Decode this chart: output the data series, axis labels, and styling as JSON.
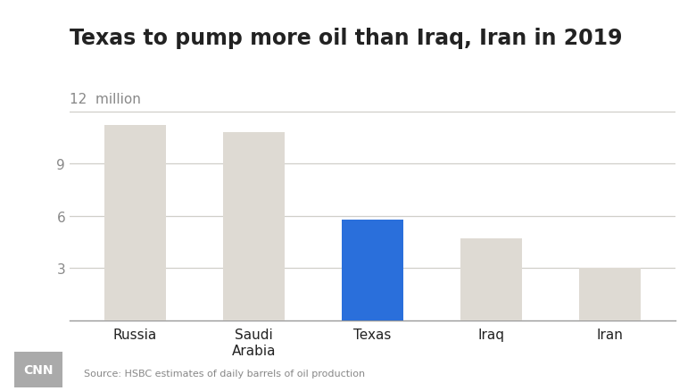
{
  "title": "Texas to pump more oil than Iraq, Iran in 2019",
  "categories": [
    "Russia",
    "Saudi\nArabia",
    "Texas",
    "Iraq",
    "Iran"
  ],
  "values": [
    11.2,
    10.8,
    5.8,
    4.7,
    3.0
  ],
  "bar_colors": [
    "#dedad3",
    "#dedad3",
    "#2a6fdb",
    "#dedad3",
    "#dedad3"
  ],
  "background_color": "#ffffff",
  "ylabel_text": "12  million",
  "ytick_labels": [
    "3",
    "6",
    "9"
  ],
  "ytick_vals": [
    3,
    6,
    9
  ],
  "grid_vals": [
    3,
    6,
    9,
    12
  ],
  "ylim": [
    0,
    13.5
  ],
  "source_text": "Source: HSBC estimates of daily barrels of oil production",
  "title_fontsize": 17,
  "tick_fontsize": 11,
  "source_fontsize": 8,
  "cnn_logo_text": "CNN",
  "cnn_logo_color": "#aaaaaa",
  "grid_color": "#d0cfc9",
  "text_color": "#222222",
  "label_color": "#888888"
}
